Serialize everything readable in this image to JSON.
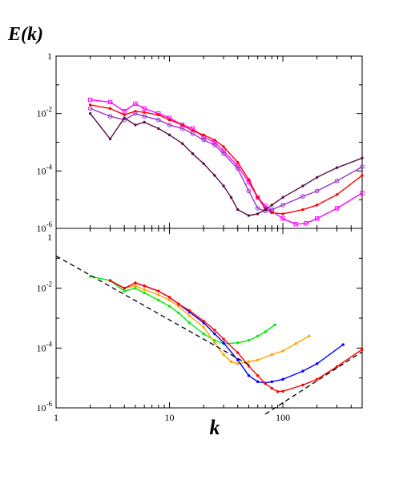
{
  "chart_data": [
    {
      "type": "line",
      "panel": "top",
      "ylabel": "E(k)",
      "xlabel": "",
      "x_scale": "log",
      "y_scale": "log",
      "xlim": [
        1,
        500
      ],
      "ylim": [
        1e-06,
        1
      ],
      "y_ticks": [
        {
          "label": "1",
          "value": 1
        },
        {
          "label": "10",
          "exp": "-2",
          "value": 0.01
        },
        {
          "label": "10",
          "exp": "-4",
          "value": 0.0001
        },
        {
          "label": "10",
          "exp": "-6",
          "value": 1e-06
        }
      ],
      "grid": false,
      "series": [
        {
          "color": "#ff00ff",
          "marker": "square-open",
          "x": [
            2,
            3,
            4,
            5,
            6,
            8,
            10,
            13,
            16,
            20,
            25,
            30,
            40,
            50,
            60,
            70,
            80,
            100,
            130,
            160,
            200,
            300,
            500
          ],
          "y": [
            0.03,
            0.025,
            0.012,
            0.022,
            0.015,
            0.01,
            0.007,
            0.004,
            0.003,
            0.0015,
            0.001,
            0.0005,
            0.00015,
            4e-05,
            1.2e-05,
            6e-06,
            4e-06,
            2.2e-06,
            1.4e-06,
            1.5e-06,
            2.2e-06,
            5e-06,
            1.7e-05
          ]
        },
        {
          "color": "#ff0000",
          "marker": "dot",
          "x": [
            2,
            3,
            4,
            5,
            6,
            8,
            10,
            13,
            16,
            20,
            25,
            30,
            40,
            50,
            60,
            70,
            80,
            100,
            150,
            200,
            300,
            500
          ],
          "y": [
            0.02,
            0.015,
            0.009,
            0.012,
            0.011,
            0.009,
            0.006,
            0.004,
            0.0025,
            0.0018,
            0.0012,
            0.0007,
            0.0002,
            5e-05,
            1.2e-05,
            5e-06,
            3.5e-06,
            3.2e-06,
            4.5e-06,
            6.5e-06,
            1.5e-05,
            7e-05
          ]
        },
        {
          "color": "#9933cc",
          "marker": "circle-open",
          "x": [
            2,
            3,
            4,
            5,
            6,
            8,
            10,
            13,
            16,
            20,
            25,
            30,
            40,
            50,
            60,
            70,
            80,
            100,
            150,
            200,
            300,
            500
          ],
          "y": [
            0.015,
            0.008,
            0.006,
            0.01,
            0.008,
            0.006,
            0.004,
            0.003,
            0.002,
            0.0012,
            0.0008,
            0.0004,
            0.00012,
            2e-05,
            5e-06,
            4e-06,
            4.5e-06,
            6.5e-06,
            1.3e-05,
            2e-05,
            4.5e-05,
            0.00014
          ]
        },
        {
          "color": "#5c0f4a",
          "marker": "dot",
          "x": [
            2,
            3,
            4,
            5,
            6,
            8,
            10,
            13,
            16,
            20,
            25,
            30,
            35,
            40,
            50,
            60,
            70,
            80,
            100,
            150,
            200,
            300,
            500
          ],
          "y": [
            0.01,
            0.0013,
            0.007,
            0.004,
            0.005,
            0.003,
            0.0018,
            0.0009,
            0.0004,
            0.00018,
            7e-05,
            3e-05,
            1.2e-05,
            4.5e-06,
            2.8e-06,
            3.2e-06,
            4.5e-06,
            6.5e-06,
            1.2e-05,
            3e-05,
            6e-05,
            0.00013,
            0.00028
          ]
        }
      ]
    },
    {
      "type": "line",
      "panel": "bottom",
      "xlabel": "k",
      "ylabel": "",
      "x_scale": "log",
      "y_scale": "log",
      "xlim": [
        1,
        500
      ],
      "ylim": [
        1e-06,
        1
      ],
      "x_ticks": [
        {
          "label": "1",
          "value": 1
        },
        {
          "label": "10",
          "value": 10
        },
        {
          "label": "100",
          "value": 100
        }
      ],
      "y_ticks": [
        {
          "label": "1",
          "value": 1
        },
        {
          "label": "10",
          "exp": "-2",
          "value": 0.01
        },
        {
          "label": "10",
          "exp": "-4",
          "value": 0.0001
        },
        {
          "label": "10",
          "exp": "-6",
          "value": 1e-06
        }
      ],
      "grid": false,
      "series": [
        {
          "color": "#00ee00",
          "marker": "dot",
          "x": [
            2,
            3,
            4,
            5,
            6,
            8,
            10,
            12,
            15,
            20,
            25,
            30,
            40,
            50,
            60,
            70,
            85
          ],
          "y": [
            0.025,
            0.018,
            0.008,
            0.01,
            0.007,
            0.004,
            0.0025,
            0.0015,
            0.0007,
            0.0003,
            0.00018,
            0.00014,
            0.00015,
            0.00018,
            0.00025,
            0.00035,
            0.0006
          ]
        },
        {
          "color": "#ffa500",
          "marker": "dot",
          "x": [
            3,
            4,
            5,
            6,
            8,
            10,
            12,
            15,
            20,
            25,
            30,
            35,
            40,
            50,
            60,
            80,
            100,
            130,
            170
          ],
          "y": [
            0.018,
            0.01,
            0.012,
            0.009,
            0.006,
            0.004,
            0.0025,
            0.0012,
            0.0005,
            0.00015,
            6e-05,
            3.5e-05,
            3e-05,
            3.5e-05,
            4e-05,
            6e-05,
            8e-05,
            0.00014,
            0.00025
          ]
        },
        {
          "color": "#0000ff",
          "marker": "dot",
          "x": [
            3,
            4,
            5,
            6,
            8,
            10,
            12,
            15,
            20,
            25,
            30,
            40,
            50,
            60,
            70,
            80,
            100,
            150,
            200,
            340
          ],
          "y": [
            0.018,
            0.01,
            0.015,
            0.012,
            0.008,
            0.005,
            0.003,
            0.0016,
            0.0007,
            0.0003,
            0.00015,
            4e-05,
            1.2e-05,
            7.5e-06,
            6.8e-06,
            7.5e-06,
            9e-06,
            1.7e-05,
            3e-05,
            0.00013
          ]
        },
        {
          "color": "#ff0000",
          "marker": "dot",
          "x": [
            3,
            4,
            5,
            6,
            8,
            10,
            12,
            15,
            20,
            25,
            30,
            40,
            50,
            60,
            70,
            80,
            90,
            100,
            150,
            200,
            300,
            500
          ],
          "y": [
            0.018,
            0.01,
            0.015,
            0.012,
            0.008,
            0.005,
            0.003,
            0.0018,
            0.0008,
            0.0004,
            0.0002,
            7e-05,
            2.5e-05,
            1.2e-05,
            6.5e-06,
            4.5e-06,
            3.5e-06,
            3.6e-06,
            5.8e-06,
            9e-06,
            2.4e-05,
            9e-05
          ]
        },
        {
          "color": "#000000",
          "style": "dashed",
          "marker": "none",
          "x": [
            1,
            50
          ],
          "y": [
            0.12,
            2.8e-05
          ]
        },
        {
          "color": "#000000",
          "style": "dashed",
          "marker": "none",
          "x": [
            70,
            500
          ],
          "y": [
            6.2e-07,
            7.5e-05
          ]
        }
      ]
    }
  ]
}
